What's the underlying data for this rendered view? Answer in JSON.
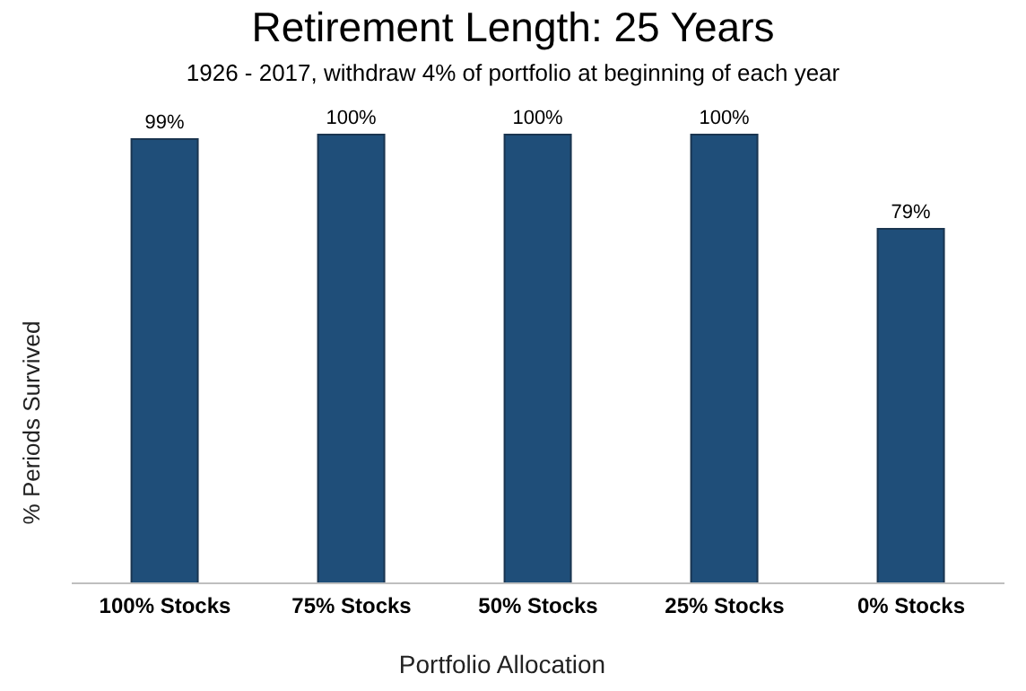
{
  "chart_data": {
    "type": "bar",
    "title": "Retirement Length: 25 Years",
    "subtitle": "1926 - 2017, withdraw 4% of portfolio at beginning of each year",
    "xlabel": "Portfolio Allocation",
    "ylabel": "% Periods Survived",
    "categories": [
      "100% Stocks",
      "75% Stocks",
      "50% Stocks",
      "25% Stocks",
      "0% Stocks"
    ],
    "values": [
      99,
      100,
      100,
      100,
      79
    ],
    "value_labels": [
      "99%",
      "100%",
      "100%",
      "100%",
      "79%"
    ],
    "color": "#1f4e79",
    "legend": false,
    "grid": false
  }
}
